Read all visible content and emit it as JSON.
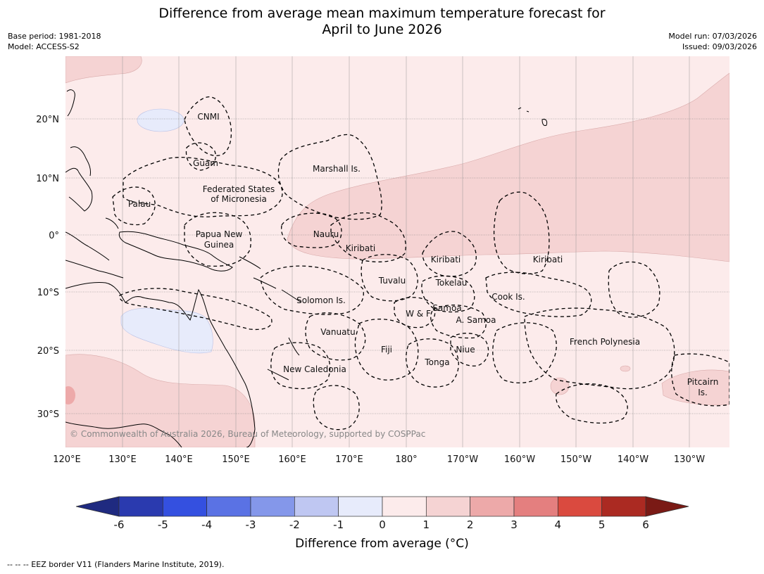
{
  "title_line1": "Difference from average mean maximum temperature forecast for",
  "title_line2": "April to June 2026",
  "meta_left": [
    "Base period: 1981-2018",
    "Model: ACCESS-S2"
  ],
  "meta_right": [
    "Model run: 07/03/2026",
    "Issued: 09/03/2026"
  ],
  "copyright": "© Commonwealth of Australia 2026, Bureau of Meteorology, supported by COSPPac",
  "lon_labels": [
    "120°E",
    "130°E",
    "140°E",
    "150°E",
    "160°E",
    "170°E",
    "180°",
    "170°W",
    "160°W",
    "150°W",
    "140°W",
    "130°W"
  ],
  "lat_labels": [
    "20°N",
    "10°N",
    "0°",
    "10°S",
    "20°S",
    "30°S"
  ],
  "region_labels": {
    "cnmi": "CNMI",
    "guam": "Guam",
    "marshall": "Marshall Is.",
    "fsm1": "Federated States",
    "fsm2": "of Micronesia",
    "palau": "Palau",
    "png1": "Papua New",
    "png2": "Guinea",
    "nauru": "Nauru",
    "kiribati1": "Kiribati",
    "kiribati2": "Kiribati",
    "kiribati3": "Kiribati",
    "tuvalu": "Tuvalu",
    "tokelau": "Tokelau",
    "cook": "Cook Is.",
    "solomon": "Solomon Is.",
    "samoa": "Samoa",
    "wf": "W & F",
    "asamoa": "A. Samoa",
    "vanuatu": "Vanuatu",
    "fiji": "Fiji",
    "niue": "Niue",
    "tonga": "Tonga",
    "newcal": "New Caledonia",
    "frpoly": "French Polynesia",
    "pitcairn1": "Pitcairn",
    "pitcairn2": "Is."
  },
  "colorbar": {
    "tick_labels": [
      "-6",
      "-5",
      "-4",
      "-3",
      "-2",
      "-1",
      "0",
      "1",
      "2",
      "3",
      "4",
      "5",
      "6"
    ],
    "colors": [
      "#2a3aaf",
      "#3450e0",
      "#5a72e4",
      "#8497ea",
      "#bfc7f2",
      "#e7ebfb",
      "#fcebeb",
      "#f5d3d3",
      "#eda9a9",
      "#e47f7f",
      "#da4a3f",
      "#ab2a22"
    ],
    "under_color": "#1f2a80",
    "over_color": "#7a1a15",
    "title": "Difference from average (°C)"
  },
  "footnote": "--  --  -- EEZ border V11 (Flanders Marine Institute, 2019)."
}
